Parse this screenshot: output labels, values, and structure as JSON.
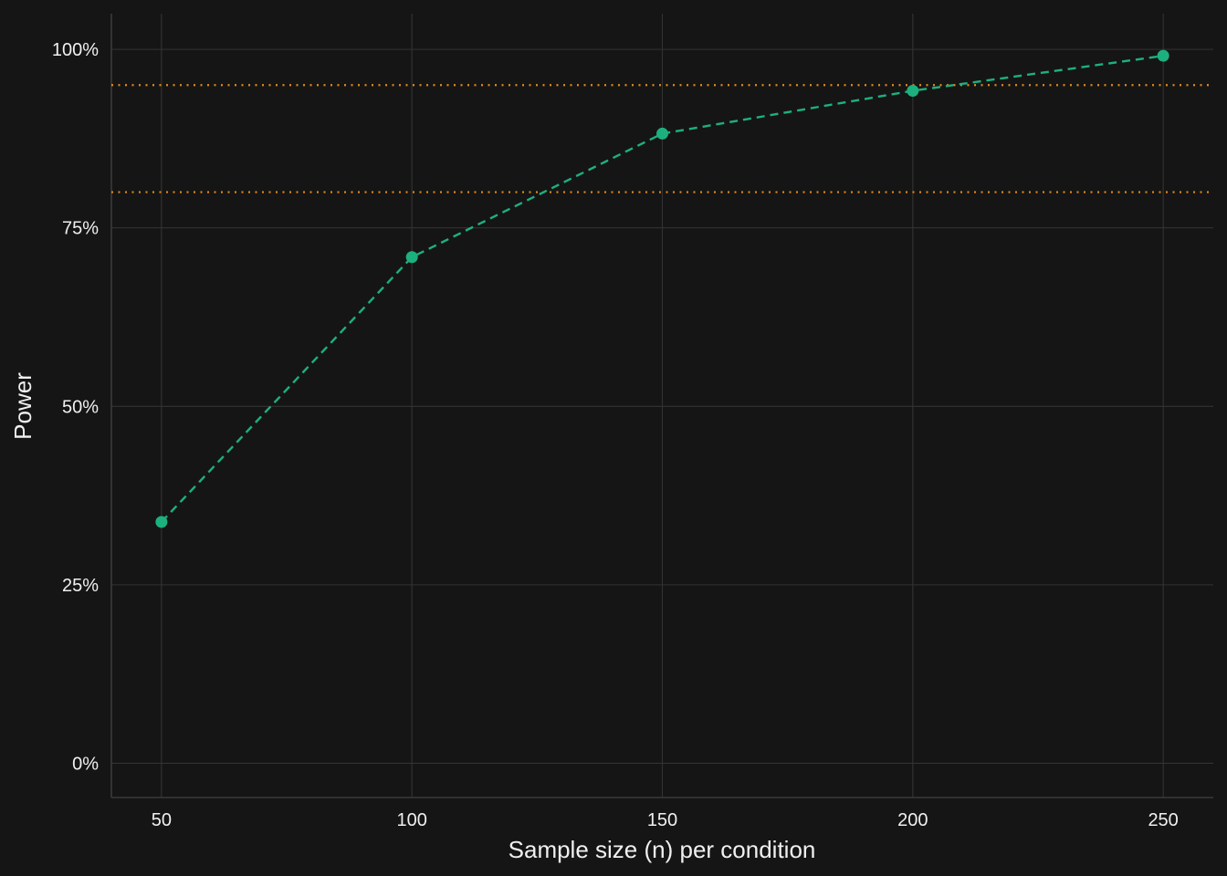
{
  "chart_data": {
    "type": "line",
    "title": "",
    "xlabel": "Sample size (n) per condition",
    "ylabel": "Power",
    "xlim": [
      40,
      260
    ],
    "ylim": [
      -0.048,
      1.05
    ],
    "x_ticks": [
      50,
      100,
      150,
      200,
      250
    ],
    "x_tick_labels": [
      "50",
      "100",
      "150",
      "200",
      "250"
    ],
    "y_ticks": [
      0,
      0.25,
      0.5,
      0.75,
      1.0
    ],
    "y_tick_labels": [
      "0%",
      "25%",
      "50%",
      "75%",
      "100%"
    ],
    "grid": true,
    "series": [
      {
        "x": [
          50,
          100,
          150,
          200,
          250
        ],
        "y": [
          0.338,
          0.709,
          0.882,
          0.942,
          0.991
        ],
        "color": "#1db07f",
        "line_style": "dashed",
        "markers": true
      }
    ],
    "reference_lines": [
      {
        "y": 0.95,
        "color": "#e08a1e",
        "line_style": "dotted"
      },
      {
        "y": 0.8,
        "color": "#e08a1e",
        "line_style": "dotted"
      }
    ],
    "colors": {
      "background": "#151515",
      "grid": "#333333",
      "text": "#f0f0f0",
      "series": "#1db07f",
      "reference": "#e08a1e"
    }
  }
}
